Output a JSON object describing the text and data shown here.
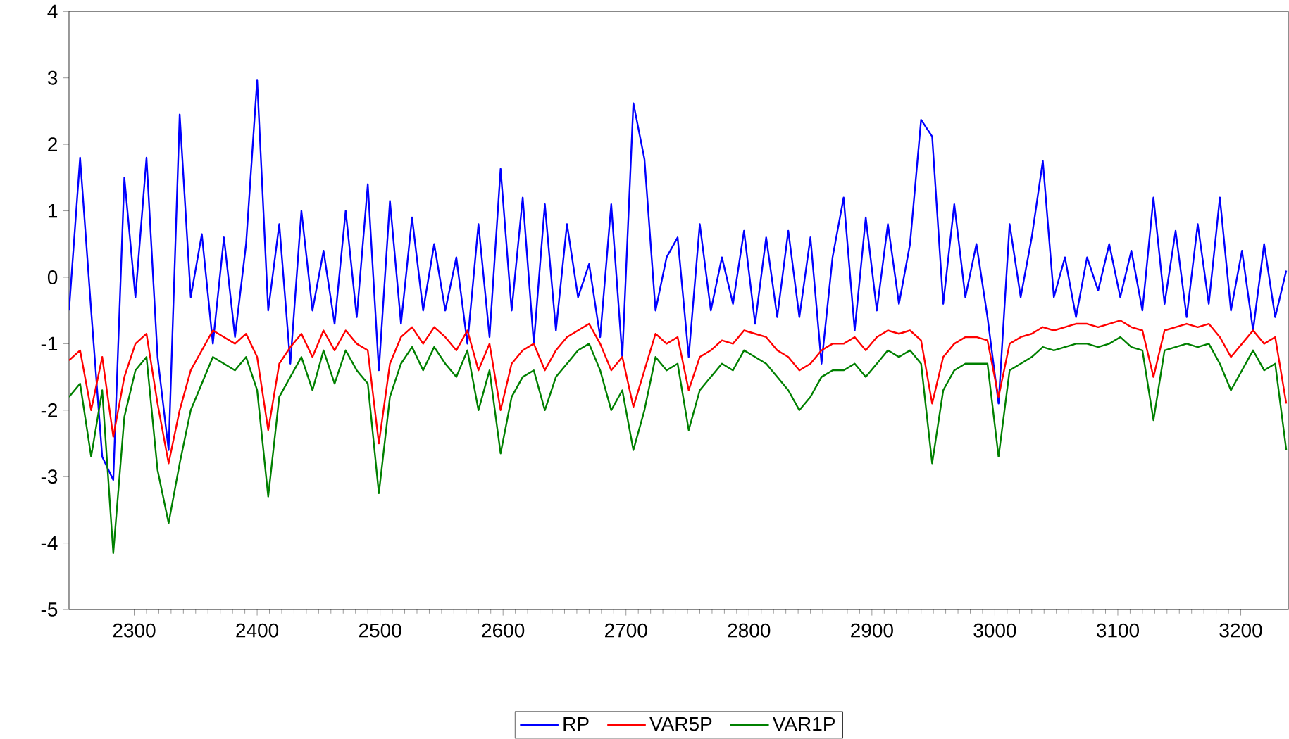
{
  "chart_data": {
    "type": "line",
    "x": [
      2247,
      2256,
      2265,
      2274,
      2283,
      2292,
      2301,
      2310,
      2319,
      2328,
      2337,
      2346,
      2355,
      2364,
      2373,
      2382,
      2391,
      2400,
      2409,
      2418,
      2427,
      2436,
      2445,
      2454,
      2463,
      2472,
      2481,
      2490,
      2499,
      2508,
      2517,
      2526,
      2535,
      2544,
      2553,
      2562,
      2571,
      2580,
      2589,
      2598,
      2607,
      2616,
      2625,
      2634,
      2643,
      2652,
      2661,
      2670,
      2679,
      2688,
      2697,
      2706,
      2715,
      2724,
      2733,
      2742,
      2751,
      2760,
      2769,
      2778,
      2787,
      2796,
      2805,
      2814,
      2823,
      2832,
      2841,
      2850,
      2859,
      2868,
      2877,
      2886,
      2895,
      2904,
      2913,
      2922,
      2931,
      2940,
      2949,
      2958,
      2967,
      2976,
      2985,
      2994,
      3003,
      3012,
      3021,
      3030,
      3039,
      3048,
      3057,
      3066,
      3075,
      3084,
      3093,
      3102,
      3111,
      3120,
      3129,
      3138,
      3147,
      3156,
      3165,
      3174,
      3183,
      3192,
      3201,
      3210,
      3219,
      3228,
      3237
    ],
    "series": [
      {
        "name": "RP",
        "color": "#0000ff",
        "values": [
          -0.5,
          1.8,
          -0.5,
          -2.7,
          -3.05,
          1.5,
          -0.3,
          1.8,
          -1.2,
          -2.6,
          2.45,
          -0.3,
          0.65,
          -1.0,
          0.6,
          -0.9,
          0.5,
          2.97,
          -0.5,
          0.8,
          -1.3,
          1.0,
          -0.5,
          0.4,
          -0.7,
          1.0,
          -0.6,
          1.4,
          -1.4,
          1.15,
          -0.7,
          0.9,
          -0.5,
          0.5,
          -0.5,
          0.3,
          -1.0,
          0.8,
          -0.9,
          1.63,
          -0.5,
          1.2,
          -1.0,
          1.1,
          -0.8,
          0.8,
          -0.3,
          0.2,
          -0.9,
          1.1,
          -1.2,
          2.62,
          1.78,
          -0.5,
          0.3,
          0.6,
          -1.2,
          0.8,
          -0.5,
          0.3,
          -0.4,
          0.7,
          -0.7,
          0.6,
          -0.6,
          0.7,
          -0.6,
          0.6,
          -1.3,
          0.3,
          1.2,
          -0.8,
          0.9,
          -0.5,
          0.8,
          -0.4,
          0.5,
          2.37,
          2.12,
          -0.4,
          1.1,
          -0.3,
          0.5,
          -0.6,
          -1.9,
          0.8,
          -0.3,
          0.6,
          1.75,
          -0.3,
          0.3,
          -0.6,
          0.3,
          -0.2,
          0.5,
          -0.3,
          0.4,
          -0.5,
          1.2,
          -0.4,
          0.7,
          -0.6,
          0.8,
          -0.4,
          1.2,
          -0.5,
          0.4,
          -0.8,
          0.5,
          -0.6,
          0.1
        ]
      },
      {
        "name": "VAR5P",
        "color": "#ff0000",
        "values": [
          -1.25,
          -1.1,
          -2.0,
          -1.2,
          -2.4,
          -1.5,
          -1.0,
          -0.85,
          -1.9,
          -2.8,
          -2.0,
          -1.4,
          -1.1,
          -0.8,
          -0.9,
          -1.0,
          -0.85,
          -1.2,
          -2.3,
          -1.3,
          -1.05,
          -0.85,
          -1.2,
          -0.8,
          -1.1,
          -0.8,
          -1.0,
          -1.1,
          -2.5,
          -1.3,
          -0.9,
          -0.75,
          -1.0,
          -0.75,
          -0.9,
          -1.1,
          -0.8,
          -1.4,
          -1.0,
          -2.0,
          -1.3,
          -1.1,
          -1.0,
          -1.4,
          -1.1,
          -0.9,
          -0.8,
          -0.7,
          -1.0,
          -1.4,
          -1.2,
          -1.95,
          -1.4,
          -0.85,
          -1.0,
          -0.9,
          -1.7,
          -1.2,
          -1.1,
          -0.95,
          -1.0,
          -0.8,
          -0.85,
          -0.9,
          -1.1,
          -1.2,
          -1.4,
          -1.3,
          -1.1,
          -1.0,
          -1.0,
          -0.9,
          -1.1,
          -0.9,
          -0.8,
          -0.85,
          -0.8,
          -0.95,
          -1.9,
          -1.2,
          -1.0,
          -0.9,
          -0.9,
          -0.95,
          -1.8,
          -1.0,
          -0.9,
          -0.85,
          -0.75,
          -0.8,
          -0.75,
          -0.7,
          -0.7,
          -0.75,
          -0.7,
          -0.65,
          -0.75,
          -0.8,
          -1.5,
          -0.8,
          -0.75,
          -0.7,
          -0.75,
          -0.7,
          -0.9,
          -1.2,
          -1.0,
          -0.8,
          -1.0,
          -0.9,
          -1.9
        ]
      },
      {
        "name": "VAR1P",
        "color": "#008000",
        "values": [
          -1.8,
          -1.6,
          -2.7,
          -1.7,
          -4.15,
          -2.1,
          -1.4,
          -1.2,
          -2.9,
          -3.7,
          -2.8,
          -2.0,
          -1.6,
          -1.2,
          -1.3,
          -1.4,
          -1.2,
          -1.7,
          -3.3,
          -1.8,
          -1.5,
          -1.2,
          -1.7,
          -1.1,
          -1.6,
          -1.1,
          -1.4,
          -1.6,
          -3.25,
          -1.8,
          -1.3,
          -1.05,
          -1.4,
          -1.05,
          -1.3,
          -1.5,
          -1.1,
          -2.0,
          -1.4,
          -2.65,
          -1.8,
          -1.5,
          -1.4,
          -2.0,
          -1.5,
          -1.3,
          -1.1,
          -1.0,
          -1.4,
          -2.0,
          -1.7,
          -2.6,
          -2.0,
          -1.2,
          -1.4,
          -1.3,
          -2.3,
          -1.7,
          -1.5,
          -1.3,
          -1.4,
          -1.1,
          -1.2,
          -1.3,
          -1.5,
          -1.7,
          -2.0,
          -1.8,
          -1.5,
          -1.4,
          -1.4,
          -1.3,
          -1.5,
          -1.3,
          -1.1,
          -1.2,
          -1.1,
          -1.3,
          -2.8,
          -1.7,
          -1.4,
          -1.3,
          -1.3,
          -1.3,
          -2.7,
          -1.4,
          -1.3,
          -1.2,
          -1.05,
          -1.1,
          -1.05,
          -1.0,
          -1.0,
          -1.05,
          -1.0,
          -0.9,
          -1.05,
          -1.1,
          -2.15,
          -1.1,
          -1.05,
          -1.0,
          -1.05,
          -1.0,
          -1.3,
          -1.7,
          -1.4,
          -1.1,
          -1.4,
          -1.3,
          -2.6
        ]
      }
    ],
    "xlim": [
      2247,
      3239
    ],
    "ylim": [
      -5,
      4
    ],
    "xticks": [
      2300,
      2400,
      2500,
      2600,
      2700,
      2800,
      2900,
      3000,
      3100,
      3200
    ],
    "yticks": [
      -5,
      -4,
      -3,
      -2,
      -1,
      0,
      1,
      2,
      3,
      4
    ],
    "grid": false,
    "legend": "bottom",
    "marker": "none",
    "line_style": "solid"
  }
}
